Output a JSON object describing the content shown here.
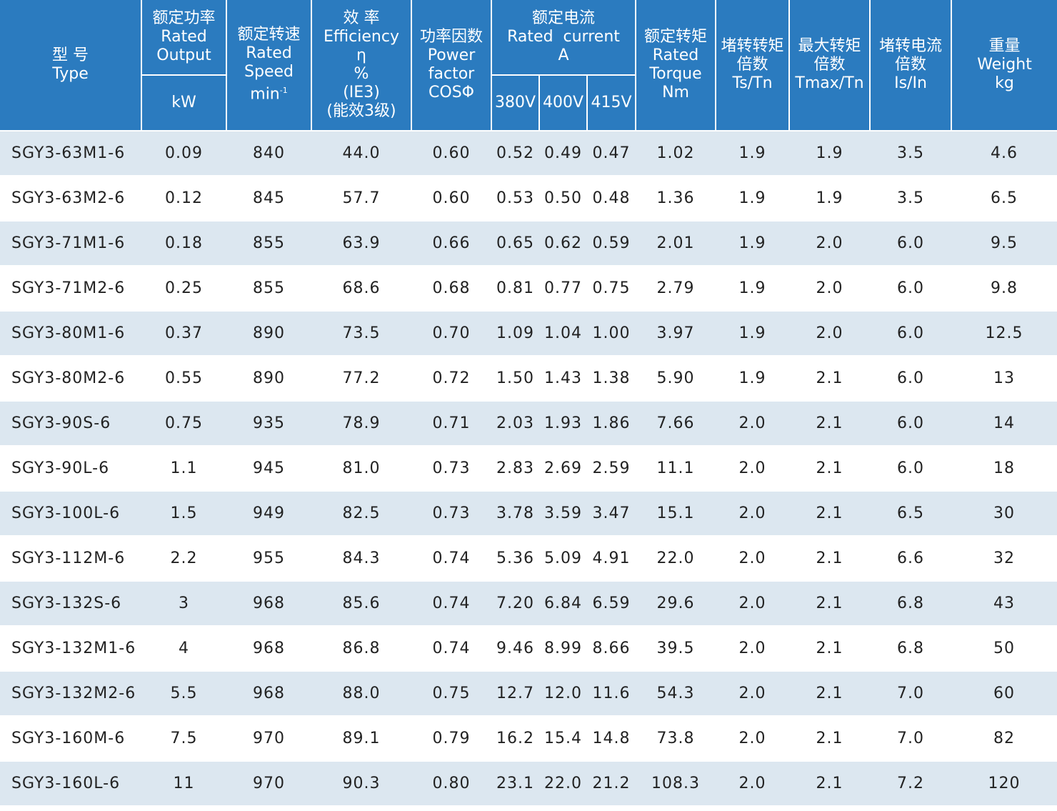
{
  "header": {
    "type": [
      "型 号",
      "Type"
    ],
    "output": [
      "额定功率",
      "Rated",
      "Output"
    ],
    "output_unit": "kW",
    "speed": [
      "额定转速",
      "Rated",
      "Speed",
      "min"
    ],
    "speed_sup": "-1",
    "efficiency": [
      "效 率",
      "Efficiency",
      "η",
      "%",
      "(IE3)",
      "(能效3级)"
    ],
    "power_factor": [
      "功率因数",
      "Power",
      "factor",
      "COSΦ"
    ],
    "current": [
      "额定电流",
      "Rated  current",
      "A"
    ],
    "voltages": [
      "380V",
      "400V",
      "415V"
    ],
    "torque": [
      "额定转矩",
      "Rated",
      "Torque",
      "Nm"
    ],
    "locked_torque": [
      "堵转转矩",
      "倍数",
      "Ts/Tn"
    ],
    "max_torque": [
      "最大转矩",
      "倍数",
      "Tmax/Tn"
    ],
    "locked_current": [
      "堵转电流",
      "倍数",
      "Is/In"
    ],
    "weight": [
      "重量",
      "Weight",
      "kg"
    ]
  },
  "colors": {
    "header_bg": "#2b7bbf",
    "stripe": "#dce7f0"
  },
  "rows": [
    [
      "SGY3-63M1-6",
      "0.09",
      "840",
      "44.0",
      "0.60",
      "0.52",
      "0.49",
      "0.47",
      "1.02",
      "1.9",
      "1.9",
      "3.5",
      "4.6"
    ],
    [
      "SGY3-63M2-6",
      "0.12",
      "845",
      "57.7",
      "0.60",
      "0.53",
      "0.50",
      "0.48",
      "1.36",
      "1.9",
      "1.9",
      "3.5",
      "6.5"
    ],
    [
      "SGY3-71M1-6",
      "0.18",
      "855",
      "63.9",
      "0.66",
      "0.65",
      "0.62",
      "0.59",
      "2.01",
      "1.9",
      "2.0",
      "6.0",
      "9.5"
    ],
    [
      "SGY3-71M2-6",
      "0.25",
      "855",
      "68.6",
      "0.68",
      "0.81",
      "0.77",
      "0.75",
      "2.79",
      "1.9",
      "2.0",
      "6.0",
      "9.8"
    ],
    [
      "SGY3-80M1-6",
      "0.37",
      "890",
      "73.5",
      "0.70",
      "1.09",
      "1.04",
      "1.00",
      "3.97",
      "1.9",
      "2.0",
      "6.0",
      "12.5"
    ],
    [
      "SGY3-80M2-6",
      "0.55",
      "890",
      "77.2",
      "0.72",
      "1.50",
      "1.43",
      "1.38",
      "5.90",
      "1.9",
      "2.1",
      "6.0",
      "13"
    ],
    [
      "SGY3-90S-6",
      "0.75",
      "935",
      "78.9",
      "0.71",
      "2.03",
      "1.93",
      "1.86",
      "7.66",
      "2.0",
      "2.1",
      "6.0",
      "14"
    ],
    [
      "SGY3-90L-6",
      "1.1",
      "945",
      "81.0",
      "0.73",
      "2.83",
      "2.69",
      "2.59",
      "11.1",
      "2.0",
      "2.1",
      "6.0",
      "18"
    ],
    [
      "SGY3-100L-6",
      "1.5",
      "949",
      "82.5",
      "0.73",
      "3.78",
      "3.59",
      "3.47",
      "15.1",
      "2.0",
      "2.1",
      "6.5",
      "30"
    ],
    [
      "SGY3-112M-6",
      "2.2",
      "955",
      "84.3",
      "0.74",
      "5.36",
      "5.09",
      "4.91",
      "22.0",
      "2.0",
      "2.1",
      "6.6",
      "32"
    ],
    [
      "SGY3-132S-6",
      "3",
      "968",
      "85.6",
      "0.74",
      "7.20",
      "6.84",
      "6.59",
      "29.6",
      "2.0",
      "2.1",
      "6.8",
      "43"
    ],
    [
      "SGY3-132M1-6",
      "4",
      "968",
      "86.8",
      "0.74",
      "9.46",
      "8.99",
      "8.66",
      "39.5",
      "2.0",
      "2.1",
      "6.8",
      "50"
    ],
    [
      "SGY3-132M2-6",
      "5.5",
      "968",
      "88.0",
      "0.75",
      "12.7",
      "12.0",
      "11.6",
      "54.3",
      "2.0",
      "2.1",
      "7.0",
      "60"
    ],
    [
      "SGY3-160M-6",
      "7.5",
      "970",
      "89.1",
      "0.79",
      "16.2",
      "15.4",
      "14.8",
      "73.8",
      "2.0",
      "2.1",
      "7.0",
      "82"
    ],
    [
      "SGY3-160L-6",
      "11",
      "970",
      "90.3",
      "0.80",
      "23.1",
      "22.0",
      "21.2",
      "108.3",
      "2.0",
      "2.1",
      "7.2",
      "120"
    ]
  ]
}
